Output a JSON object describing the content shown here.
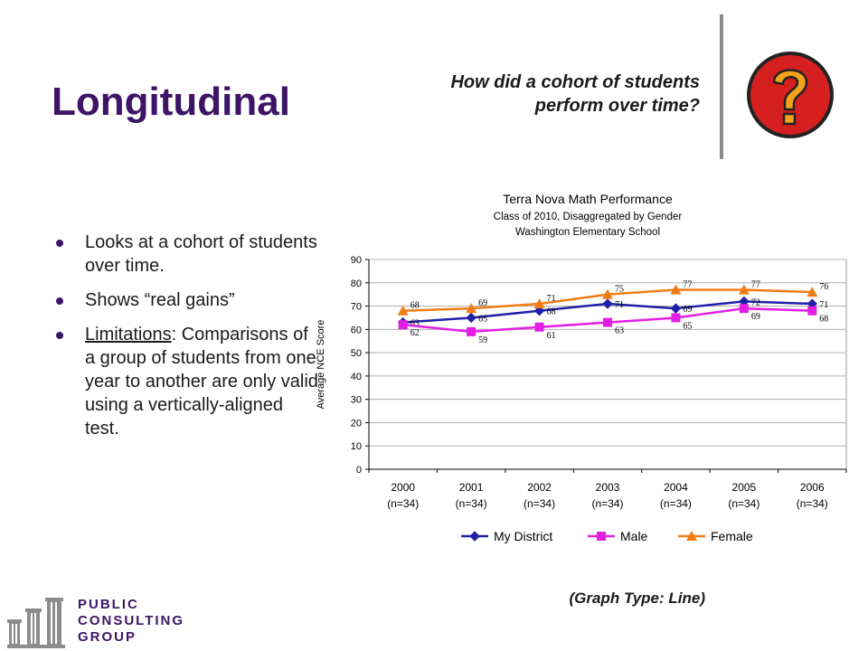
{
  "slide": {
    "title": "Longitudinal",
    "question_line1": "How did a cohort of students",
    "question_line2": "perform over time?",
    "question_icon": "question-mark-icon",
    "graph_type": "(Graph Type: Line)",
    "bullets": [
      {
        "text": "Looks at a cohort of students over time."
      },
      {
        "text": "Shows “real gains”"
      },
      {
        "label": "Limitations",
        "text": ": Comparisons of a group of students from one year to another are only valid using a vertically-aligned test."
      }
    ],
    "logo": {
      "line1": "PUBLIC",
      "line2": "CONSULTING",
      "line3": "GROUP",
      "icon": "pillars-logo-icon"
    }
  },
  "chart_data": {
    "type": "line",
    "title": "Terra Nova Math Performance",
    "subtitle1": "Class of 2010, Disaggregated by Gender",
    "subtitle2": "Washington Elementary School",
    "ylabel": "Average NCE Score",
    "xlabel": "",
    "ylim": [
      0,
      90
    ],
    "yticks": [
      0,
      10,
      20,
      30,
      40,
      50,
      60,
      70,
      80,
      90
    ],
    "categories": [
      "2000",
      "2001",
      "2002",
      "2003",
      "2004",
      "2005",
      "2006"
    ],
    "category_sub": [
      "(n=34)",
      "(n=34)",
      "(n=34)",
      "(n=34)",
      "(n=34)",
      "(n=34)",
      "(n=34)"
    ],
    "legend_position": "bottom",
    "series": [
      {
        "name": "My District",
        "values": [
          63,
          65,
          68,
          71,
          69,
          72,
          71
        ],
        "color": "#1f1fa8",
        "marker": "diamond"
      },
      {
        "name": "Male",
        "values": [
          62,
          59,
          61,
          63,
          65,
          69,
          68
        ],
        "color": "#e31ee3",
        "marker": "square"
      },
      {
        "name": "Female",
        "values": [
          68,
          69,
          71,
          75,
          77,
          77,
          76
        ],
        "color": "#f07c14",
        "marker": "triangle"
      }
    ]
  }
}
